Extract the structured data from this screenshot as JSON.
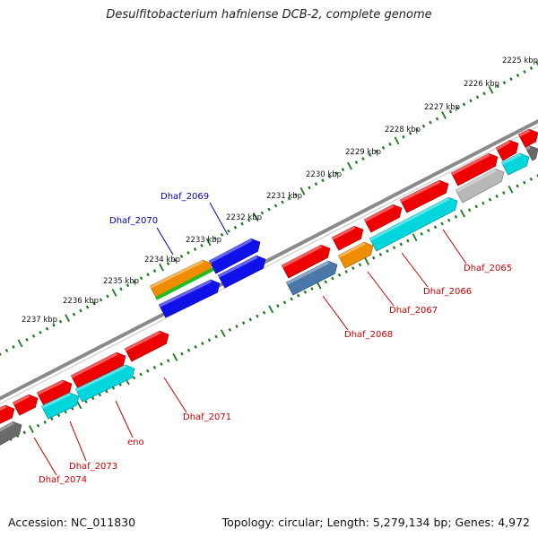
{
  "title": "Desulfitobacterium hafniense DCB-2, complete genome",
  "footer": {
    "accession": "Accession: NC_011830",
    "topology": "Topology: circular; Length: 5,279,134 bp; Genes: 4,972"
  },
  "colors": {
    "backbone": "#8a8a8a",
    "tick_track": "#1a7a1a",
    "red": "#ee0000",
    "cyan": "#00d6dc",
    "blue": "#1010e8",
    "orange": "#f08c00",
    "green": "#22bb22",
    "steelblue": "#4a78a8",
    "gray": "#b8b8b8",
    "darkgray": "#6a6a6a",
    "label_red": "#cc0000",
    "label_blue": "#0000bb"
  },
  "kbp_labels": [
    "2225 kbp",
    "2226 kbp",
    "2227 kbp",
    "2228 kbp",
    "2229 kbp",
    "2230 kbp",
    "2231 kbp",
    "2232 kbp",
    "2233 kbp",
    "2234 kbp",
    "2235 kbp",
    "2236 kbp",
    "2237 kbp"
  ],
  "gene_labels": [
    "Dhaf_2065",
    "Dhaf_2066",
    "Dhaf_2067",
    "Dhaf_2068",
    "Dhaf_2069",
    "Dhaf_2070",
    "Dhaf_2071",
    "eno",
    "Dhaf_2073",
    "Dhaf_2074"
  ]
}
